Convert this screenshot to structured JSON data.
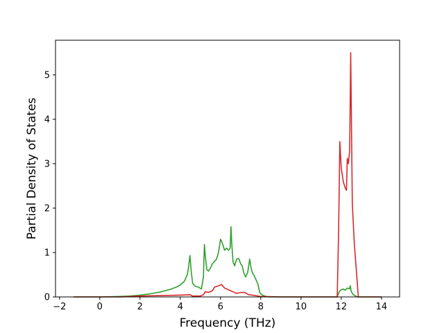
{
  "chart_data": {
    "type": "line",
    "title": "",
    "xlabel": "Frequency (THz)",
    "ylabel": "Partial Density of States",
    "xlim": [
      -2.2,
      14.9
    ],
    "ylim": [
      0,
      5.78
    ],
    "xticks": [
      -2,
      0,
      2,
      4,
      6,
      8,
      10,
      12,
      14
    ],
    "yticks": [
      0,
      1,
      2,
      3,
      4,
      5
    ],
    "xtick_labels": [
      "−2",
      "0",
      "2",
      "4",
      "6",
      "8",
      "10",
      "12",
      "14"
    ],
    "ytick_labels": [
      "0",
      "1",
      "2",
      "3",
      "4",
      "5"
    ],
    "grid": false,
    "legend": "none",
    "series": [
      {
        "color": "#2ca02c",
        "x": [
          -1.3,
          0.0,
          0.5,
          1.0,
          1.5,
          2.0,
          2.5,
          3.0,
          3.5,
          3.8,
          4.0,
          4.2,
          4.35,
          4.42,
          4.48,
          4.55,
          4.62,
          4.75,
          4.9,
          5.05,
          5.15,
          5.2,
          5.25,
          5.32,
          5.4,
          5.5,
          5.6,
          5.7,
          5.8,
          5.9,
          6.0,
          6.1,
          6.2,
          6.3,
          6.4,
          6.48,
          6.52,
          6.56,
          6.62,
          6.7,
          6.8,
          6.9,
          7.0,
          7.08,
          7.15,
          7.25,
          7.35,
          7.45,
          7.52,
          7.58,
          7.65,
          7.75,
          7.85,
          7.95,
          8.05,
          8.2,
          8.4,
          8.5,
          9.0,
          10.0,
          11.0,
          11.8,
          11.9,
          12.0,
          12.1,
          12.2,
          12.3,
          12.4,
          12.45,
          12.5,
          12.6,
          12.8,
          13.0,
          14.0
        ],
        "y": [
          0.0,
          0.0,
          0.005,
          0.01,
          0.02,
          0.04,
          0.07,
          0.11,
          0.17,
          0.22,
          0.27,
          0.35,
          0.5,
          0.7,
          0.93,
          0.55,
          0.3,
          0.24,
          0.22,
          0.18,
          0.45,
          1.18,
          0.9,
          0.62,
          0.58,
          0.65,
          0.75,
          0.8,
          0.85,
          1.0,
          1.3,
          1.2,
          1.05,
          1.1,
          1.05,
          1.1,
          1.58,
          1.2,
          0.8,
          0.7,
          0.85,
          0.87,
          0.75,
          0.7,
          0.55,
          0.45,
          0.55,
          0.85,
          0.65,
          0.55,
          0.5,
          0.4,
          0.3,
          0.1,
          0.05,
          0.02,
          0.0,
          0.0,
          0.0,
          0.0,
          0.0,
          0.0,
          0.12,
          0.16,
          0.18,
          0.15,
          0.2,
          0.18,
          0.25,
          0.12,
          0.05,
          0.0,
          0.0,
          0.0
        ]
      },
      {
        "color": "#d62728",
        "x": [
          -1.3,
          0.0,
          1.0,
          2.0,
          3.0,
          4.0,
          4.5,
          4.6,
          5.0,
          5.15,
          5.25,
          5.4,
          5.6,
          5.7,
          5.9,
          6.05,
          6.2,
          6.4,
          6.6,
          6.8,
          7.0,
          7.2,
          7.4,
          7.6,
          8.0,
          9.0,
          10.0,
          11.0,
          11.8,
          11.87,
          11.93,
          12.0,
          12.1,
          12.2,
          12.26,
          12.3,
          12.35,
          12.42,
          12.47,
          12.55,
          12.65,
          12.8,
          12.85,
          13.0,
          14.0
        ],
        "y": [
          0.0,
          0.0,
          0.0,
          0.02,
          0.03,
          0.04,
          0.05,
          0.02,
          0.02,
          0.05,
          0.12,
          0.1,
          0.14,
          0.22,
          0.25,
          0.28,
          0.2,
          0.16,
          0.12,
          0.08,
          0.1,
          0.1,
          0.05,
          0.04,
          0.01,
          0.0,
          0.0,
          0.0,
          0.0,
          1.5,
          3.5,
          2.9,
          2.6,
          2.45,
          2.4,
          3.12,
          3.0,
          3.3,
          5.5,
          2.1,
          1.2,
          0.3,
          0.0,
          0.0,
          0.0
        ]
      }
    ]
  }
}
